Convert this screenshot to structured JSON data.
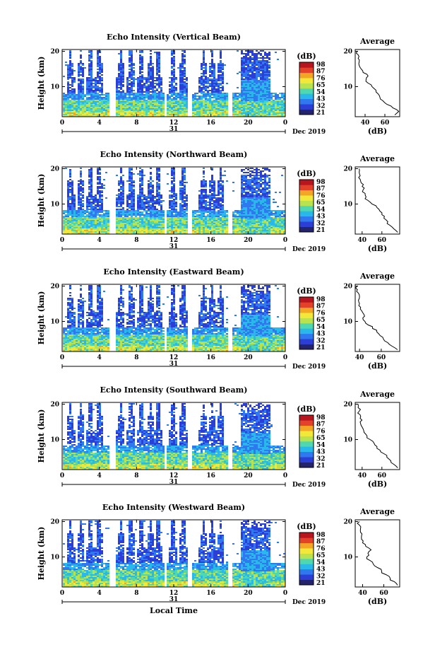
{
  "chart_data": [
    {
      "type": "heatmap",
      "title": "Echo Intensity (Vertical Beam)",
      "ylabel": "Height (km)",
      "x_ticks": [
        "0",
        "4",
        "8",
        "12",
        "16",
        "20",
        "0"
      ],
      "y_ticks": [
        "10",
        "20"
      ],
      "date_label": "31",
      "month_label": "Dec 2019",
      "xlim": [
        0,
        24
      ],
      "ylim": [
        1.5,
        20.5
      ],
      "colorbar": {
        "unit": "(dB)",
        "ticks": [
          "98",
          "87",
          "76",
          "65",
          "54",
          "43",
          "32",
          "21"
        ]
      },
      "average": {
        "title": "Average",
        "xlabel": "(dB)",
        "x_ticks": [
          "40",
          "60"
        ],
        "y_ticks": [
          "10",
          "20"
        ],
        "xlim": [
          30,
          75
        ],
        "heights": [
          2,
          3,
          4,
          5,
          6,
          7,
          8,
          9,
          10,
          11,
          12,
          13,
          14,
          15,
          16,
          17,
          18,
          19,
          20
        ],
        "values": [
          70,
          74,
          68,
          62,
          58,
          55,
          53,
          51,
          47,
          43,
          41,
          43,
          38,
          36,
          34,
          34,
          33,
          33,
          32
        ]
      }
    },
    {
      "type": "heatmap",
      "title": "Echo Intensity (Northward Beam)",
      "ylabel": "Height (km)",
      "x_ticks": [
        "0",
        "4",
        "8",
        "12",
        "16",
        "20",
        "0"
      ],
      "y_ticks": [
        "10",
        "20"
      ],
      "date_label": "31",
      "month_label": "Dec 2019",
      "xlim": [
        0,
        24
      ],
      "ylim": [
        1.5,
        20.5
      ],
      "colorbar": {
        "unit": "(dB)",
        "ticks": [
          "98",
          "87",
          "76",
          "65",
          "54",
          "43",
          "32",
          "21"
        ]
      },
      "average": {
        "title": "Average",
        "xlabel": "(dB)",
        "x_ticks": [
          "40",
          "60"
        ],
        "y_ticks": [
          "10",
          "20"
        ],
        "xlim": [
          33,
          78
        ],
        "heights": [
          2,
          3,
          4,
          5,
          6,
          7,
          8,
          9,
          10,
          11,
          12,
          13,
          14,
          15,
          16,
          17,
          18,
          19,
          20
        ],
        "values": [
          76,
          72,
          68,
          66,
          62,
          60,
          58,
          55,
          50,
          46,
          44,
          43,
          41,
          40,
          39,
          38,
          38,
          37,
          37
        ]
      }
    },
    {
      "type": "heatmap",
      "title": "Echo Intensity (Eastward Beam)",
      "ylabel": "Height (km)",
      "x_ticks": [
        "0",
        "4",
        "8",
        "12",
        "16",
        "20",
        "0"
      ],
      "y_ticks": [
        "10",
        "20"
      ],
      "date_label": "31",
      "month_label": "Dec 2019",
      "xlim": [
        0,
        24
      ],
      "ylim": [
        1.5,
        20.5
      ],
      "colorbar": {
        "unit": "(dB)",
        "ticks": [
          "98",
          "87",
          "76",
          "65",
          "54",
          "43",
          "32",
          "21"
        ]
      },
      "average": {
        "title": "Average",
        "xlabel": "(dB)",
        "x_ticks": [
          "40",
          "60"
        ],
        "y_ticks": [
          "10",
          "20"
        ],
        "xlim": [
          36,
          77
        ],
        "heights": [
          2,
          3,
          4,
          5,
          6,
          7,
          8,
          9,
          10,
          11,
          12,
          13,
          14,
          15,
          16,
          17,
          18,
          19,
          20
        ],
        "values": [
          75,
          70,
          66,
          62,
          59,
          56,
          52,
          48,
          45,
          43,
          44,
          42,
          41,
          40,
          39,
          40,
          39,
          38,
          38
        ]
      }
    },
    {
      "type": "heatmap",
      "title": "Echo Intensity (Southward Beam)",
      "ylabel": "Height (km)",
      "x_ticks": [
        "0",
        "4",
        "8",
        "12",
        "16",
        "20",
        "0"
      ],
      "y_ticks": [
        "10",
        "20"
      ],
      "date_label": "31",
      "month_label": "Dec 2019",
      "xlim": [
        0,
        24
      ],
      "ylim": [
        1.5,
        20.5
      ],
      "colorbar": {
        "unit": "(dB)",
        "ticks": [
          "98",
          "87",
          "76",
          "65",
          "54",
          "43",
          "32",
          "21"
        ]
      },
      "average": {
        "title": "Average",
        "xlabel": "(dB)",
        "x_ticks": [
          "40",
          "60"
        ],
        "y_ticks": [
          "10",
          "20"
        ],
        "xlim": [
          33,
          78
        ],
        "heights": [
          2,
          3,
          4,
          5,
          6,
          7,
          8,
          9,
          10,
          11,
          12,
          13,
          14,
          15,
          16,
          17,
          18,
          19,
          20
        ],
        "values": [
          76,
          72,
          69,
          65,
          62,
          58,
          55,
          52,
          48,
          45,
          42,
          41,
          39,
          38,
          38,
          38,
          37,
          36,
          36
        ]
      }
    },
    {
      "type": "heatmap",
      "title": "Echo Intensity (Westward Beam)",
      "ylabel": "Height (km)",
      "x_ticks": [
        "0",
        "4",
        "8",
        "12",
        "16",
        "20",
        "0"
      ],
      "y_ticks": [
        "10",
        "20"
      ],
      "date_label": "31",
      "month_label": "Dec 2019",
      "xlabel": "Local Time",
      "xlim": [
        0,
        24
      ],
      "ylim": [
        1.5,
        20.5
      ],
      "colorbar": {
        "unit": "(dB)",
        "ticks": [
          "98",
          "87",
          "76",
          "65",
          "54",
          "43",
          "32",
          "21"
        ]
      },
      "average": {
        "title": "Average",
        "xlabel": "(dB)",
        "x_ticks": [
          "40",
          "60"
        ],
        "y_ticks": [
          "10",
          "20"
        ],
        "xlim": [
          33,
          75
        ],
        "heights": [
          2,
          3,
          4,
          5,
          6,
          7,
          8,
          9,
          10,
          11,
          12,
          13,
          14,
          15,
          16,
          17,
          18,
          19,
          20
        ],
        "values": [
          73,
          70,
          66,
          62,
          58,
          54,
          50,
          47,
          44,
          45,
          48,
          43,
          40,
          39,
          39,
          38,
          38,
          37,
          37
        ]
      }
    }
  ],
  "palette": [
    "#24246e",
    "#2b3fd6",
    "#2f78f0",
    "#28b8ea",
    "#4fd8b0",
    "#b8e24e",
    "#f2e83a",
    "#f3a626",
    "#e4412a",
    "#b8161e"
  ]
}
